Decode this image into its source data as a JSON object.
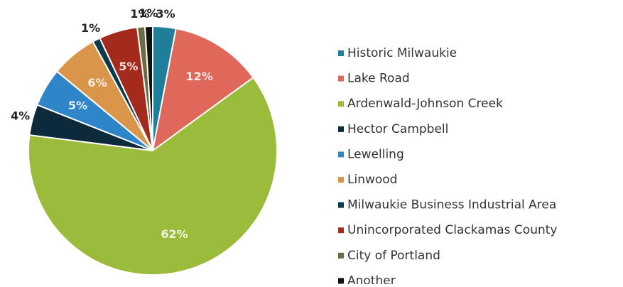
{
  "chart_data": {
    "type": "pie",
    "categories": [
      "Historic Milwaukie",
      "Lake Road",
      "Ardenwald-Johnson Creek",
      "Hector Campbell",
      "Lewelling",
      "Linwood",
      "Milwaukie Business Industrial Area",
      "Unincorporated Clackamas County",
      "City of Portland",
      "Another"
    ],
    "values": [
      3,
      12,
      62,
      4,
      5,
      6,
      1,
      5,
      1,
      1
    ],
    "value_labels": [
      "3%",
      "12%",
      "62%",
      "4%",
      "5%",
      "6%",
      "1%",
      "5%",
      "1%",
      "1%"
    ],
    "colors": [
      "#1f7f9a",
      "#e0685a",
      "#9bbb3a",
      "#0d2a3a",
      "#2e86c8",
      "#d9954a",
      "#0b3a4a",
      "#a32a1c",
      "#6b6b45",
      "#111111"
    ],
    "legend": "right"
  }
}
